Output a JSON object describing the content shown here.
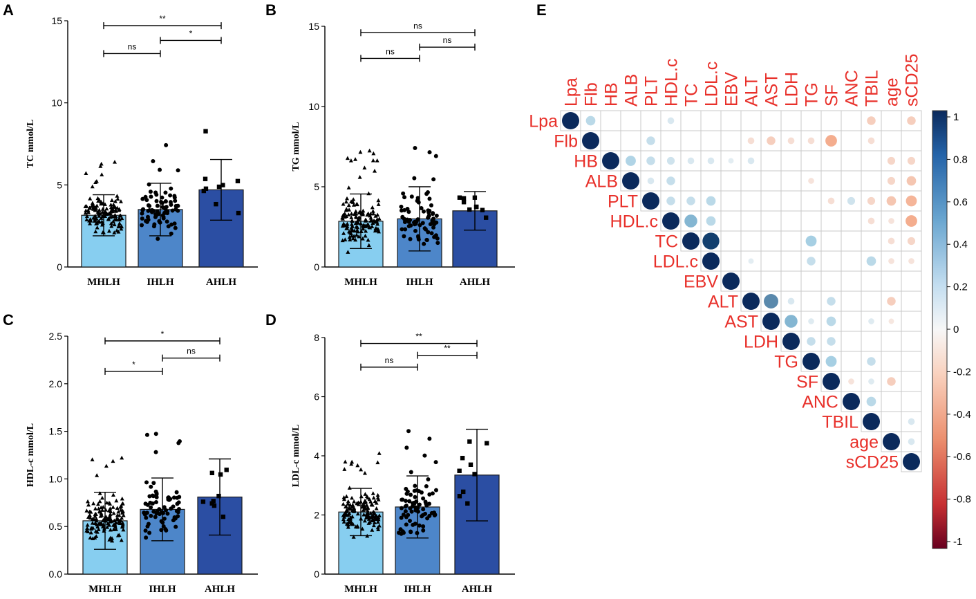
{
  "chart_data": {
    "panels": [
      {
        "letter": "A",
        "type": "bar",
        "ylabel": "TC mmol/L",
        "ylim": [
          0,
          15
        ],
        "yticks": [
          0,
          5,
          10,
          15
        ],
        "categories": [
          "MHLH",
          "IHLH",
          "AHLH"
        ],
        "values": [
          3.15,
          3.5,
          4.7
        ],
        "sd": [
          1.25,
          1.6,
          1.85
        ],
        "comparisons": [
          {
            "from": 0,
            "to": 2,
            "y": 14.7,
            "label": "**"
          },
          {
            "from": 1,
            "to": 2,
            "y": 13.8,
            "label": "*"
          },
          {
            "from": 0,
            "to": 1,
            "y": 13.0,
            "label": "ns"
          }
        ]
      },
      {
        "letter": "B",
        "type": "bar",
        "ylabel": "TG mmol/L",
        "ylim": [
          0,
          15
        ],
        "yticks": [
          0,
          5,
          10,
          15
        ],
        "categories": [
          "MHLH",
          "IHLH",
          "AHLH"
        ],
        "values": [
          2.85,
          3.0,
          3.5
        ],
        "sd": [
          1.7,
          2.0,
          1.2
        ],
        "comparisons": [
          {
            "from": 0,
            "to": 2,
            "y": 14.6,
            "label": "ns"
          },
          {
            "from": 1,
            "to": 2,
            "y": 13.7,
            "label": "ns"
          },
          {
            "from": 0,
            "to": 1,
            "y": 13.0,
            "label": "ns"
          }
        ]
      },
      {
        "letter": "C",
        "type": "bar",
        "ylabel": "HDL-c mmol/L",
        "ylim": [
          0,
          2.5
        ],
        "yticks": [
          0.0,
          0.5,
          1.0,
          1.5,
          2.0,
          2.5
        ],
        "categories": [
          "MHLH",
          "IHLH",
          "AHLH"
        ],
        "values": [
          0.56,
          0.68,
          0.81
        ],
        "sd": [
          0.3,
          0.33,
          0.4
        ],
        "comparisons": [
          {
            "from": 0,
            "to": 2,
            "y": 2.45,
            "label": "*"
          },
          {
            "from": 1,
            "to": 2,
            "y": 2.27,
            "label": "ns"
          },
          {
            "from": 0,
            "to": 1,
            "y": 2.13,
            "label": "*"
          }
        ]
      },
      {
        "letter": "D",
        "type": "bar",
        "ylabel": "LDL-c mmol/L",
        "ylim": [
          0,
          8
        ],
        "yticks": [
          0,
          2,
          4,
          6,
          8
        ],
        "categories": [
          "MHLH",
          "IHLH",
          "AHLH"
        ],
        "values": [
          2.1,
          2.27,
          3.35
        ],
        "sd": [
          0.8,
          1.05,
          1.55
        ],
        "comparisons": [
          {
            "from": 0,
            "to": 2,
            "y": 7.8,
            "label": "**"
          },
          {
            "from": 1,
            "to": 2,
            "y": 7.4,
            "label": "**"
          },
          {
            "from": 0,
            "to": 1,
            "y": 7.0,
            "label": "ns"
          }
        ]
      },
      {
        "letter": "E",
        "type": "heatmap",
        "variables": [
          "Lpa",
          "Flb",
          "HB",
          "ALB",
          "PLT",
          "HDL.c",
          "TC",
          "LDL.c",
          "EBV",
          "ALT",
          "AST",
          "LDH",
          "TG",
          "SF",
          "ANC",
          "TBIL",
          "age",
          "sCD25"
        ],
        "correlations": [
          [
            0,
            1,
            0.3
          ],
          [
            0,
            5,
            0.15
          ],
          [
            0,
            15,
            -0.25
          ],
          [
            0,
            17,
            -0.25
          ],
          [
            1,
            9,
            -0.15
          ],
          [
            1,
            10,
            -0.25
          ],
          [
            1,
            11,
            -0.15
          ],
          [
            1,
            12,
            -0.15
          ],
          [
            1,
            13,
            -0.45
          ],
          [
            1,
            15,
            -0.15
          ],
          [
            1,
            4,
            0.25
          ],
          [
            2,
            3,
            0.35
          ],
          [
            2,
            4,
            0.25
          ],
          [
            2,
            5,
            0.2
          ],
          [
            2,
            6,
            0.15
          ],
          [
            2,
            7,
            0.15
          ],
          [
            2,
            8,
            0.1
          ],
          [
            2,
            9,
            0.15
          ],
          [
            2,
            16,
            -0.2
          ],
          [
            2,
            17,
            -0.2
          ],
          [
            3,
            4,
            0.15
          ],
          [
            3,
            5,
            0.25
          ],
          [
            3,
            12,
            -0.12
          ],
          [
            3,
            16,
            -0.2
          ],
          [
            3,
            17,
            -0.3
          ],
          [
            4,
            5,
            0.25
          ],
          [
            4,
            6,
            0.25
          ],
          [
            4,
            7,
            0.3
          ],
          [
            4,
            13,
            -0.15
          ],
          [
            4,
            14,
            0.2
          ],
          [
            4,
            15,
            -0.2
          ],
          [
            4,
            16,
            -0.3
          ],
          [
            4,
            17,
            -0.4
          ],
          [
            5,
            6,
            0.55
          ],
          [
            5,
            7,
            0.3
          ],
          [
            5,
            15,
            -0.15
          ],
          [
            5,
            16,
            -0.12
          ],
          [
            5,
            17,
            -0.45
          ],
          [
            6,
            7,
            0.95
          ],
          [
            6,
            12,
            0.4
          ],
          [
            6,
            16,
            -0.15
          ],
          [
            6,
            17,
            -0.2
          ],
          [
            7,
            9,
            0.1
          ],
          [
            7,
            12,
            0.25
          ],
          [
            7,
            15,
            0.3
          ],
          [
            7,
            16,
            -0.12
          ],
          [
            7,
            17,
            -0.12
          ],
          [
            9,
            10,
            0.7
          ],
          [
            9,
            11,
            0.15
          ],
          [
            9,
            13,
            0.25
          ],
          [
            9,
            16,
            -0.25
          ],
          [
            10,
            11,
            0.55
          ],
          [
            10,
            12,
            0.12
          ],
          [
            10,
            13,
            0.3
          ],
          [
            10,
            15,
            0.12
          ],
          [
            10,
            16,
            -0.1
          ],
          [
            11,
            12,
            0.25
          ],
          [
            11,
            13,
            0.25
          ],
          [
            12,
            13,
            0.4
          ],
          [
            12,
            15,
            0.25
          ],
          [
            13,
            14,
            -0.12
          ],
          [
            13,
            15,
            0.12
          ],
          [
            13,
            16,
            -0.25
          ],
          [
            14,
            15,
            0.3
          ],
          [
            15,
            17,
            0.15
          ],
          [
            16,
            17,
            0.15
          ]
        ],
        "colorbar_ticks": [
          "1",
          "0.8",
          "0.6",
          "0.4",
          "0.2",
          "0",
          "-0.2",
          "-0.4",
          "-0.6",
          "-0.8",
          "-1"
        ]
      }
    ]
  }
}
